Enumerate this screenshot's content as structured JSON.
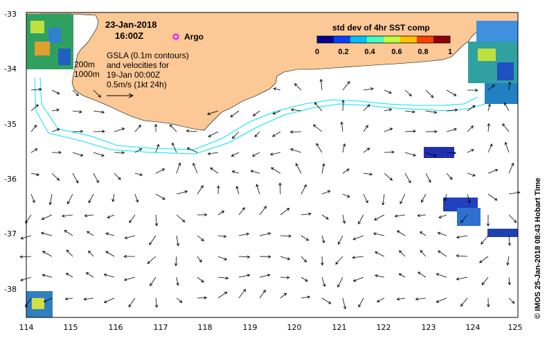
{
  "header": {
    "date": "23-Jan-2018",
    "time": "16:00Z",
    "argo_label": "Argo"
  },
  "legend": {
    "title": "std dev of 4hr SST comp",
    "ticks": [
      "0",
      "0.2",
      "0.4",
      "0.6",
      "0.8",
      "1"
    ],
    "colors": [
      "#00008f",
      "#0040ff",
      "#00c0ff",
      "#40ffbf",
      "#c0ff40",
      "#ffc000",
      "#ff4000",
      "#8f0000"
    ]
  },
  "annotation": {
    "line1": "GSLA (0.1m contours)",
    "line2": "and velocities for",
    "line3": "19-Jan 00:00Z",
    "line4": "0.5m/s (1kt 24h)"
  },
  "bathymetry": {
    "label_200": "200m",
    "label_1000": "1000m"
  },
  "axes": {
    "x_ticks": [
      "114",
      "115",
      "116",
      "117",
      "118",
      "119",
      "120",
      "121",
      "122",
      "123",
      "124",
      "125"
    ],
    "y_ticks": [
      "-33",
      "-34",
      "-35",
      "-36",
      "-37",
      "-38"
    ]
  },
  "credit": "© IMOS 25-Jan-2018 08:43 Hobart Time",
  "colors": {
    "land": "#fbc896",
    "contour": "#00e5ee",
    "argo": "#ff00ff"
  }
}
